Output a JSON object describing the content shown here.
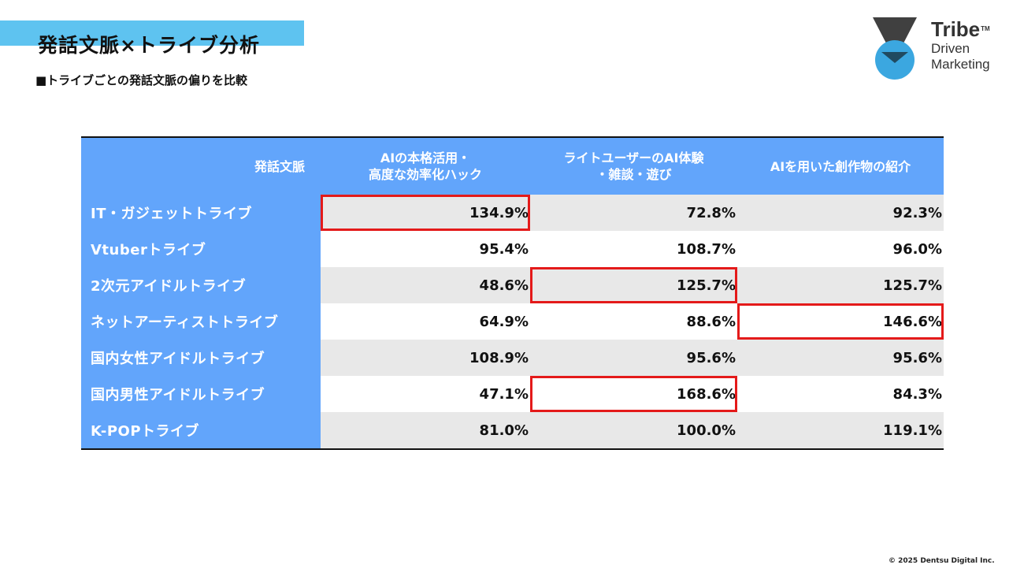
{
  "title": "発話文脈×トライブ分析",
  "subtitle": "■トライブごとの発話文脈の偏りを比較",
  "logo": {
    "brand": "Tribe",
    "tm": "TM",
    "line1": "Driven",
    "line2": "Marketing",
    "colors": {
      "triangle": "#404040",
      "circle": "#3ba7e0"
    }
  },
  "table": {
    "headers": [
      "発話文脈",
      "AIの本格活用・\n高度な効率化ハック",
      "ライトユーザーのAI体験\n・雑談・遊び",
      "AIを用いた創作物の紹介"
    ],
    "rows": [
      {
        "label": "IT・ガジェットトライブ",
        "values": [
          "134.9%",
          "72.8%",
          "92.3%"
        ]
      },
      {
        "label": "Vtuberトライブ",
        "values": [
          "95.4%",
          "108.7%",
          "96.0%"
        ]
      },
      {
        "label": "2次元アイドルトライブ",
        "values": [
          "48.6%",
          "125.7%",
          "125.7%"
        ]
      },
      {
        "label": "ネットアーティストトライブ",
        "values": [
          "64.9%",
          "88.6%",
          "146.6%"
        ]
      },
      {
        "label": "国内女性アイドルトライブ",
        "values": [
          "108.9%",
          "95.6%",
          "95.6%"
        ]
      },
      {
        "label": "国内男性アイドルトライブ",
        "values": [
          "47.1%",
          "168.6%",
          "84.3%"
        ]
      },
      {
        "label": "K-POPトライブ",
        "values": [
          "81.0%",
          "100.0%",
          "119.1%"
        ]
      }
    ],
    "highlighted_cells": [
      {
        "row": 0,
        "col": 0
      },
      {
        "row": 2,
        "col": 1
      },
      {
        "row": 3,
        "col": 2
      },
      {
        "row": 5,
        "col": 1
      }
    ],
    "colors": {
      "header_bg": "#62a5fb",
      "stripe": "#e8e8e8",
      "highlight": "#e41a1a",
      "title_bar": "#5ec3f0"
    }
  },
  "copyright": "© 2025 Dentsu Digital Inc."
}
